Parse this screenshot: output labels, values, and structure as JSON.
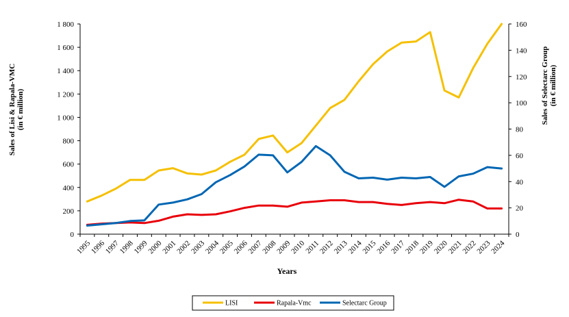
{
  "chart_data": {
    "type": "line",
    "x": [
      "1995",
      "1996",
      "1997",
      "1998",
      "1999",
      "2000",
      "2001",
      "2002",
      "2003",
      "2004",
      "2005",
      "2006",
      "2007",
      "2008",
      "2009",
      "2010",
      "2011",
      "2012",
      "2013",
      "2014",
      "2015",
      "2016",
      "2017",
      "2018",
      "2019",
      "2020",
      "2021",
      "2022",
      "2023",
      "2024"
    ],
    "xlabel": "Years",
    "ylabel_left": "Sales of Lisi  & Rapala-VMC\n(in € million)",
    "ylabel_right": "Sales of Selectarc Group\n(in € million)",
    "ylim_left": [
      0,
      1800
    ],
    "ylim_right": [
      0,
      160
    ],
    "yticks_left": [
      "0",
      "200",
      "400",
      "600",
      "800",
      "1 000",
      "1 200",
      "1 400",
      "1 600",
      "1 800"
    ],
    "yticks_right": [
      "0",
      "20",
      "40",
      "60",
      "80",
      "100",
      "120",
      "140",
      "160"
    ],
    "legend_position": "bottom",
    "series": [
      {
        "name": "LISI",
        "color": "#F5C000",
        "axis": "left",
        "values": [
          280,
          330,
          390,
          465,
          465,
          545,
          565,
          520,
          510,
          545,
          620,
          680,
          815,
          845,
          700,
          780,
          930,
          1080,
          1150,
          1310,
          1455,
          1565,
          1640,
          1650,
          1730,
          1230,
          1170,
          1420,
          1630,
          1800
        ]
      },
      {
        "name": "Rapala-Vmc",
        "color": "#E8000A",
        "axis": "left",
        "values": [
          80,
          90,
          95,
          100,
          95,
          115,
          150,
          170,
          165,
          170,
          195,
          225,
          245,
          245,
          235,
          270,
          280,
          290,
          290,
          275,
          275,
          260,
          250,
          265,
          275,
          265,
          295,
          280,
          220,
          220
        ]
      },
      {
        "name": "Selectarc Group",
        "color": "#0066B3",
        "axis": "right",
        "values": [
          6.5,
          7.5,
          8.5,
          10,
          10.5,
          22.5,
          24,
          26.5,
          30.5,
          39.5,
          45,
          51.5,
          60.5,
          60,
          47,
          55,
          67,
          60,
          47.5,
          42.5,
          43,
          41.5,
          43,
          42.5,
          43.5,
          36,
          44,
          46,
          51,
          50
        ]
      }
    ]
  }
}
